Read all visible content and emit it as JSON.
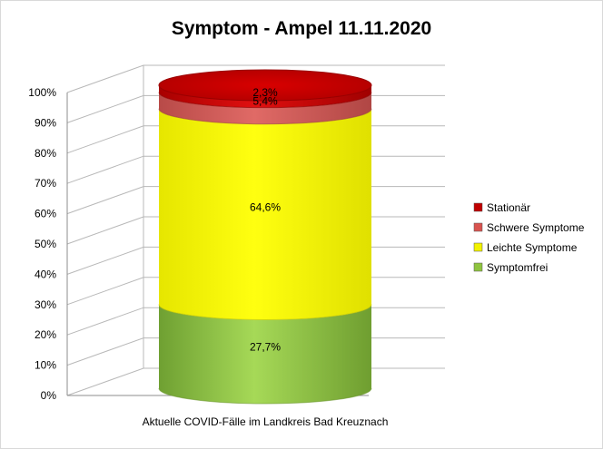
{
  "chart_data": {
    "type": "bar",
    "subtype": "stacked-100-cylinder-3d",
    "title": "Symptom - Ampel 11.11.2020",
    "categories": [
      "Aktuelle COVID-Fälle im Landkreis Bad Kreuznach"
    ],
    "series": [
      {
        "name": "Symptomfrei",
        "values": [
          27.7
        ],
        "label": "27,7%",
        "color": "#8fc43f"
      },
      {
        "name": "Leichte Symptome",
        "values": [
          64.6
        ],
        "label": "64,6%",
        "color": "#f2f200"
      },
      {
        "name": "Schwere Symptome",
        "values": [
          5.4
        ],
        "label": "5,4%",
        "color": "#d9534f"
      },
      {
        "name": "Stationär",
        "values": [
          2.3
        ],
        "label": "2,3%",
        "color": "#c00000"
      }
    ],
    "legend_order": [
      "Stationär",
      "Schwere Symptome",
      "Leichte Symptome",
      "Symptomfrei"
    ],
    "ylim": [
      0,
      100
    ],
    "yticks": [
      "0%",
      "10%",
      "20%",
      "30%",
      "40%",
      "50%",
      "60%",
      "70%",
      "80%",
      "90%",
      "100%"
    ],
    "grid": true,
    "legend_position": "right"
  }
}
